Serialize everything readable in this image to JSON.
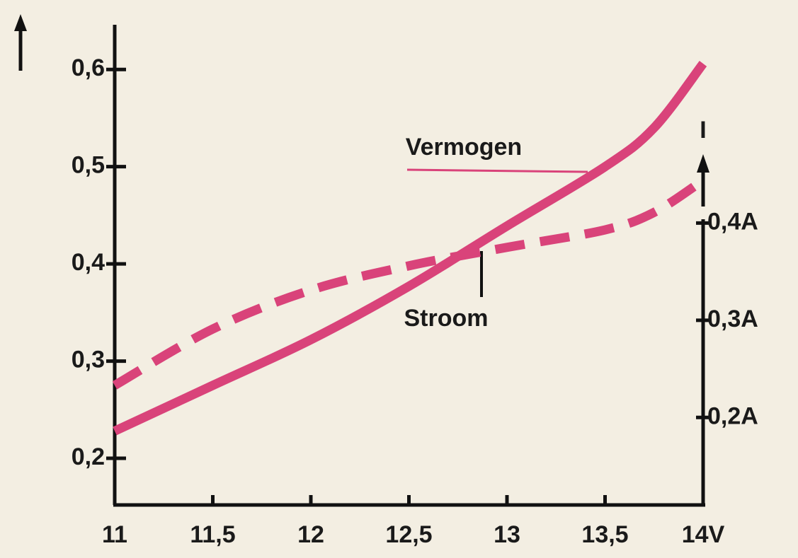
{
  "chart_data": {
    "type": "line",
    "x": [
      11,
      11.5,
      12,
      12.5,
      13,
      13.5,
      13.75,
      14
    ],
    "series": [
      {
        "name": "Vermogen",
        "color": "#d9437a",
        "dashed": false,
        "values": [
          0.228,
          0.275,
          0.322,
          0.377,
          0.439,
          0.5,
          0.54,
          0.606
        ]
      },
      {
        "name": "Stroom",
        "color": "#d9437a",
        "dashed": true,
        "axis": "y2",
        "values": [
          0.233,
          0.291,
          0.331,
          0.356,
          0.375,
          0.393,
          0.411,
          0.444
        ]
      }
    ],
    "xlim": [
      11,
      14
    ],
    "xticks": [
      11,
      {
        "value": 11.5,
        "label": "11,5"
      },
      12,
      {
        "value": 12.5,
        "label": "12,5"
      },
      13,
      {
        "value": 13.5,
        "label": "13,5"
      },
      {
        "value": 14,
        "label": "14V"
      }
    ],
    "ylim": [
      0.152,
      0.646
    ],
    "yticks": [
      {
        "value": 0.2,
        "label": "0,2"
      },
      {
        "value": 0.3,
        "label": "0,3"
      },
      {
        "value": 0.4,
        "label": "0,4"
      },
      {
        "value": 0.5,
        "label": "0,5"
      },
      {
        "value": 0.6,
        "label": "0,6"
      }
    ],
    "y2lim": [
      0.11,
      0.604
    ],
    "y2ticks": [
      {
        "value": 0.2,
        "label": "0,2A"
      },
      {
        "value": 0.3,
        "label": "0,3A"
      },
      {
        "value": 0.4,
        "label": "0,4A"
      }
    ],
    "y2label": "I"
  }
}
